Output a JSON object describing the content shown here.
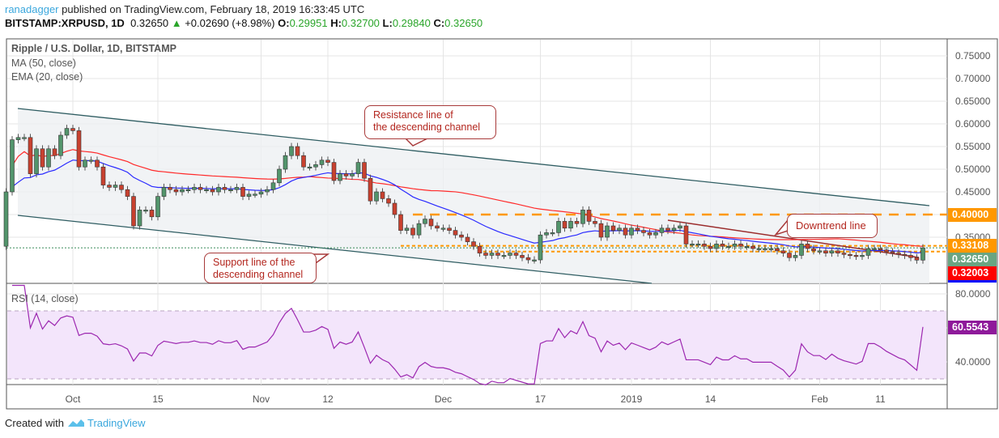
{
  "header": {
    "user": "ranadagger",
    "published": "published on TradingView.com, February 18, 2019 16:33:45 UTC",
    "symbol": "BITSTAMP:XRPUSD, 1D",
    "last": "0.32650",
    "change": "+0.02690 (+8.98%)",
    "o_label": "O:",
    "o": "0.29951",
    "h_label": "H:",
    "h": "0.32700",
    "l_label": "L:",
    "l": "0.29840",
    "c_label": "C:",
    "c": "0.32650"
  },
  "legend": {
    "title": "Ripple / U.S. Dollar, 1D, BITSTAMP",
    "ma": "MA (50, close)",
    "ema": "EMA (20, close)",
    "rsi": "RSI (14, close)"
  },
  "annotations": {
    "resistance": [
      "Resistance line of",
      "the descending channel"
    ],
    "support": [
      "Support line of the",
      "descending channel"
    ],
    "downtrend": "Downtrend line"
  },
  "price_tags": {
    "resistance_level": "0.40000",
    "upper_level": "0.33108",
    "last_price": "0.32650",
    "support_level": "0.32003",
    "rsi_value": "60.5543"
  },
  "footer": {
    "created": "Created with",
    "brand": "TradingView"
  },
  "colors": {
    "up": "#53956c",
    "down": "#c8412f",
    "ma": "#ff2a2a",
    "ema": "#2a2aff",
    "rsi": "#9c27b0",
    "level": "#ff9800"
  },
  "chart_data": {
    "type": "candlestick",
    "title": "Ripple / U.S. Dollar, 1D, BITSTAMP",
    "x_start": "2018-09-20",
    "x_end": "2019-02-18",
    "time_ticks": [
      "Oct",
      "15",
      "Nov",
      "12",
      "Dec",
      "17",
      "2019",
      "14",
      "Feb",
      "11"
    ],
    "time_tick_days": [
      11,
      25,
      42,
      53,
      72,
      88,
      103,
      116,
      134,
      144
    ],
    "y_ticks": [
      "0.75000",
      "0.70000",
      "0.65000",
      "0.60000",
      "0.55000",
      "0.50000",
      "0.45000",
      "0.35000"
    ],
    "y_tick_values": [
      0.75,
      0.7,
      0.65,
      0.6,
      0.55,
      0.5,
      0.45,
      0.35
    ],
    "ylim": [
      0.285,
      0.78
    ],
    "first_open": 0.33,
    "closes": [
      0.45,
      0.565,
      0.57,
      0.57,
      0.49,
      0.545,
      0.505,
      0.545,
      0.53,
      0.575,
      0.59,
      0.585,
      0.505,
      0.52,
      0.52,
      0.505,
      0.465,
      0.46,
      0.465,
      0.455,
      0.44,
      0.375,
      0.41,
      0.41,
      0.395,
      0.44,
      0.46,
      0.455,
      0.45,
      0.455,
      0.455,
      0.46,
      0.455,
      0.455,
      0.45,
      0.46,
      0.455,
      0.455,
      0.46,
      0.44,
      0.445,
      0.445,
      0.45,
      0.455,
      0.47,
      0.5,
      0.53,
      0.55,
      0.53,
      0.505,
      0.505,
      0.51,
      0.52,
      0.515,
      0.475,
      0.49,
      0.485,
      0.49,
      0.515,
      0.48,
      0.43,
      0.45,
      0.435,
      0.425,
      0.4,
      0.365,
      0.37,
      0.355,
      0.38,
      0.39,
      0.375,
      0.37,
      0.37,
      0.365,
      0.355,
      0.35,
      0.34,
      0.33,
      0.315,
      0.31,
      0.315,
      0.31,
      0.31,
      0.315,
      0.31,
      0.305,
      0.3,
      0.3,
      0.355,
      0.36,
      0.36,
      0.385,
      0.37,
      0.385,
      0.38,
      0.41,
      0.385,
      0.38,
      0.35,
      0.375,
      0.365,
      0.37,
      0.355,
      0.37,
      0.365,
      0.36,
      0.355,
      0.36,
      0.37,
      0.365,
      0.37,
      0.375,
      0.335,
      0.335,
      0.335,
      0.33,
      0.325,
      0.335,
      0.33,
      0.33,
      0.335,
      0.33,
      0.33,
      0.325,
      0.325,
      0.325,
      0.325,
      0.32,
      0.315,
      0.305,
      0.31,
      0.335,
      0.325,
      0.32,
      0.32,
      0.315,
      0.32,
      0.315,
      0.312,
      0.31,
      0.308,
      0.31,
      0.325,
      0.325,
      0.322,
      0.318,
      0.315,
      0.312,
      0.31,
      0.305,
      0.2995,
      0.3265
    ],
    "levels": {
      "resistance": 0.4,
      "upper": 0.33108,
      "last": 0.3265,
      "support": 0.32003
    },
    "indicators": [
      "MA (50, close)",
      "EMA (20, close)",
      "RSI (14, close)"
    ],
    "rsi": {
      "ticks": [
        "80.0000",
        "40.0000"
      ],
      "tick_values": [
        80,
        40
      ],
      "bands": [
        70,
        30
      ],
      "last": 60.5543
    }
  }
}
